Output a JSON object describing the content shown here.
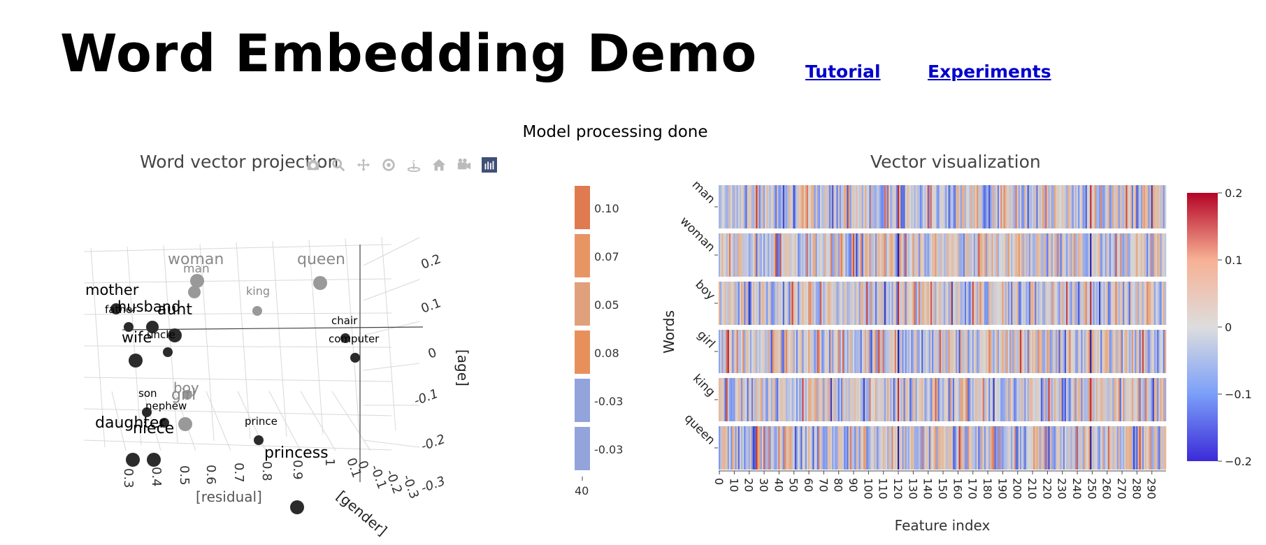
{
  "header": {
    "title": "Word Embedding Demo",
    "links": [
      {
        "label": "Tutorial"
      },
      {
        "label": "Experiments"
      }
    ]
  },
  "status": "Model processing done",
  "projection": {
    "title": "Word vector projection",
    "modebar": [
      "camera-icon",
      "zoom-icon",
      "pan-icon",
      "orbit-icon",
      "turntable-icon",
      "home-icon",
      "video-camera-icon",
      "plotly-logo-icon"
    ],
    "axes": {
      "x_label": "[residual]",
      "x_ticks": [
        "0.3",
        "0.4",
        "0.5",
        "0.6",
        "0.7",
        "0.8",
        "0.9",
        "1"
      ],
      "y_label": "[gender]",
      "y_ticks": [
        "0.1",
        "0",
        "-0.1",
        "-0.2",
        "-0.3"
      ],
      "z_label": "[age]",
      "z_ticks": [
        "0.2",
        "0.1",
        "0",
        "-0.1",
        "-0.2",
        "-0.3"
      ]
    },
    "words": [
      {
        "word": "woman",
        "group": "gray"
      },
      {
        "word": "queen",
        "group": "gray"
      },
      {
        "word": "man",
        "group": "gray"
      },
      {
        "word": "king",
        "group": "gray"
      },
      {
        "word": "boy",
        "group": "gray"
      },
      {
        "word": "girl",
        "group": "gray"
      },
      {
        "word": "mother",
        "group": "dark"
      },
      {
        "word": "father",
        "group": "dark"
      },
      {
        "word": "husband",
        "group": "dark"
      },
      {
        "word": "aunt",
        "group": "dark"
      },
      {
        "word": "uncle",
        "group": "dark"
      },
      {
        "word": "wife",
        "group": "dark"
      },
      {
        "word": "chair",
        "group": "dark"
      },
      {
        "word": "computer",
        "group": "dark"
      },
      {
        "word": "son",
        "group": "dark"
      },
      {
        "word": "nephew",
        "group": "dark"
      },
      {
        "word": "daughter",
        "group": "dark"
      },
      {
        "word": "niece",
        "group": "dark"
      },
      {
        "word": "prince",
        "group": "dark"
      },
      {
        "word": "princess",
        "group": "dark"
      }
    ]
  },
  "value_bars": {
    "values": [
      "0.10",
      "0.07",
      "0.05",
      "0.08",
      "-0.03",
      "-0.03"
    ],
    "colors": [
      "#e07a50",
      "#e89564",
      "#e0a07c",
      "#e8905c",
      "#93a3db",
      "#93a3db"
    ],
    "bottom_label": "40"
  },
  "vectors": {
    "title": "Vector visualization",
    "ylabel": "Words",
    "xlabel": "Feature index",
    "words": [
      "man",
      "woman",
      "boy",
      "girl",
      "king",
      "queen"
    ],
    "x_ticks": [
      "0",
      "10",
      "20",
      "30",
      "40",
      "50",
      "60",
      "70",
      "80",
      "90",
      "100",
      "110",
      "120",
      "130",
      "140",
      "150",
      "160",
      "170",
      "180",
      "190",
      "200",
      "210",
      "220",
      "230",
      "240",
      "250",
      "260",
      "270",
      "280",
      "290"
    ],
    "colorbar": {
      "ticks": [
        "0.2",
        "0.1",
        "0",
        "−0.1",
        "−0.2"
      ],
      "colors": [
        "#b40426",
        "#f7b194",
        "#dddddd",
        "#7b9ff9",
        "#3b2ad8"
      ]
    }
  },
  "chart_data": {
    "type": "heatmap",
    "title": "Vector visualization",
    "xlabel": "Feature index",
    "ylabel": "Words",
    "rows": [
      "man",
      "woman",
      "boy",
      "girl",
      "king",
      "queen"
    ],
    "x_range": [
      0,
      299
    ],
    "zlim": [
      -0.2,
      0.2
    ]
  }
}
